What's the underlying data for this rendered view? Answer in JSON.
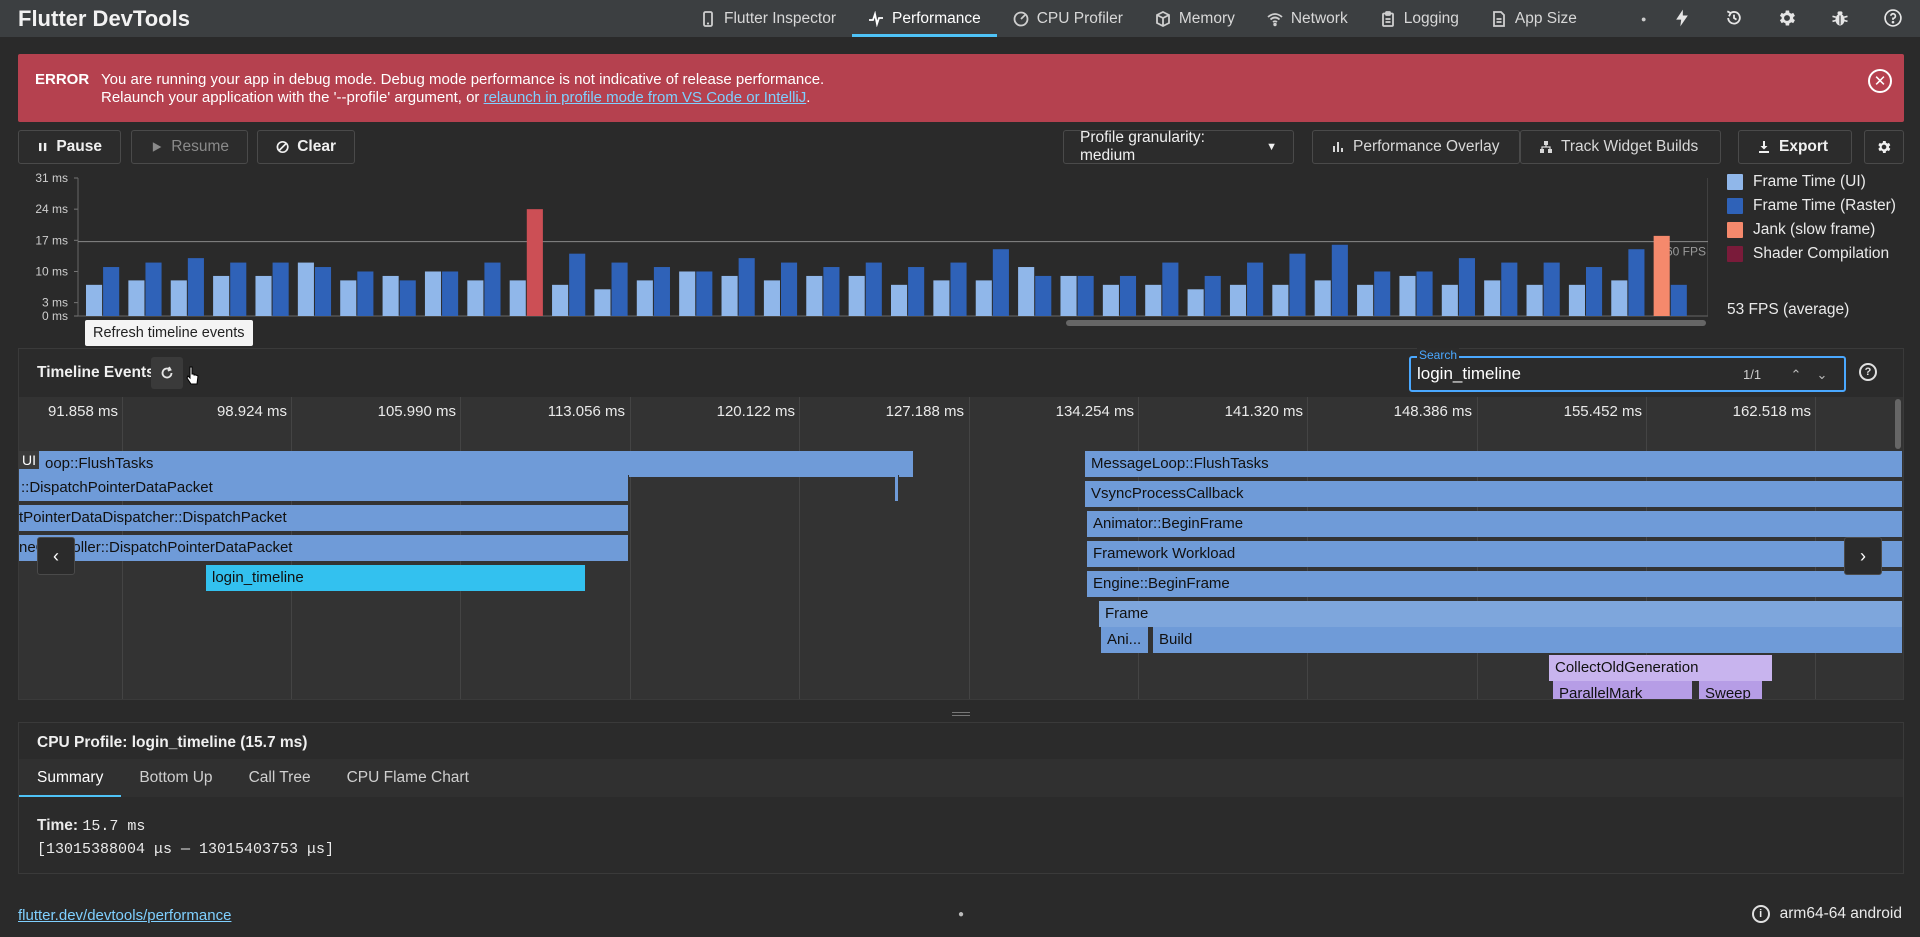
{
  "app": {
    "title": "Flutter DevTools"
  },
  "tabs": [
    {
      "label": "Flutter Inspector",
      "icon": "phone-icon"
    },
    {
      "label": "Performance",
      "icon": "pulse-icon",
      "active": true
    },
    {
      "label": "CPU Profiler",
      "icon": "gauge-icon"
    },
    {
      "label": "Memory",
      "icon": "box-icon"
    },
    {
      "label": "Network",
      "icon": "wifi-icon"
    },
    {
      "label": "Logging",
      "icon": "clipboard-icon"
    },
    {
      "label": "App Size",
      "icon": "file-icon"
    }
  ],
  "error": {
    "title": "ERROR",
    "line1": "You are running your app in debug mode. Debug mode performance is not indicative of release performance.",
    "line2_prefix": "Relaunch your application with the '--profile' argument, or ",
    "line2_link": "relaunch in profile mode from VS Code or IntelliJ",
    "line2_suffix": "."
  },
  "controls": {
    "pause": "Pause",
    "resume": "Resume",
    "clear": "Clear",
    "granularity": "Profile granularity: medium",
    "overlay": "Performance Overlay",
    "track_builds": "Track Widget Builds",
    "export": "Export"
  },
  "chart_data": {
    "type": "bar",
    "ylim": [
      0,
      31
    ],
    "y_ticks": [
      "31 ms",
      "24 ms",
      "17 ms",
      "10 ms",
      "3 ms",
      "0 ms"
    ],
    "target_label": "60 FPS",
    "series": [
      {
        "name": "Frame Time (UI)",
        "color": "#90b7ea"
      },
      {
        "name": "Frame Time (Raster)",
        "color": "#2f62b8"
      },
      {
        "name": "Jank (slow frame)",
        "color": "#f5896c"
      },
      {
        "name": "Shader Compilation",
        "color": "#7a1b3a"
      }
    ],
    "frames": [
      [
        7,
        11
      ],
      [
        8,
        12
      ],
      [
        8,
        13
      ],
      [
        9,
        12
      ],
      [
        9,
        12
      ],
      [
        12,
        11
      ],
      [
        8,
        10
      ],
      [
        9,
        8
      ],
      [
        10,
        10
      ],
      [
        8,
        12
      ],
      [
        8,
        24
      ],
      [
        7,
        14
      ],
      [
        6,
        12
      ],
      [
        8,
        11
      ],
      [
        10,
        10
      ],
      [
        9,
        13
      ],
      [
        8,
        12
      ],
      [
        9,
        11
      ],
      [
        9,
        12
      ],
      [
        7,
        11
      ],
      [
        8,
        12
      ],
      [
        8,
        15
      ],
      [
        11,
        9
      ],
      [
        9,
        9
      ],
      [
        7,
        9
      ],
      [
        7,
        12
      ],
      [
        6,
        9
      ],
      [
        7,
        12
      ],
      [
        7,
        14
      ],
      [
        8,
        16
      ],
      [
        7,
        10
      ],
      [
        9,
        10
      ],
      [
        7,
        13
      ],
      [
        8,
        12
      ],
      [
        7,
        12
      ],
      [
        7,
        11
      ],
      [
        8,
        15
      ],
      [
        18,
        7
      ]
    ],
    "jank_indices": [
      10
    ],
    "slow_raster_indices": [
      37
    ]
  },
  "fps": {
    "average": "53 FPS (average)"
  },
  "tooltip": "Refresh timeline events",
  "timeline": {
    "title": "Timeline Events",
    "search_label": "Search",
    "search_value": "login_timeline",
    "search_count": "1/1",
    "thread_label": "UI",
    "ticks": [
      "91.858 ms",
      "98.924 ms",
      "105.990 ms",
      "113.056 ms",
      "120.122 ms",
      "127.188 ms",
      "134.254 ms",
      "141.320 ms",
      "148.386 ms",
      "155.452 ms",
      "162.518 ms"
    ],
    "events": [
      {
        "label": "oop::FlushTasks"
      },
      {
        "label": "::DispatchPointerDataPacket"
      },
      {
        "label": "tPointerDataDispatcher::DispatchPacket"
      },
      {
        "label": "neController::DispatchPointerDataPacket"
      },
      {
        "label": "login_timeline"
      },
      {
        "label": "MessageLoop::FlushTasks"
      },
      {
        "label": "VsyncProcessCallback"
      },
      {
        "label": "Animator::BeginFrame"
      },
      {
        "label": "Framework Workload"
      },
      {
        "label": "Engine::BeginFrame"
      },
      {
        "label": "Frame"
      },
      {
        "label": "Ani..."
      },
      {
        "label": "Build"
      },
      {
        "label": "CollectOldGeneration"
      },
      {
        "label": "ParallelMark"
      },
      {
        "label": "Sweep"
      }
    ]
  },
  "cpu": {
    "title": "CPU Profile: login_timeline (15.7 ms)",
    "tabs": [
      "Summary",
      "Bottom Up",
      "Call Tree",
      "CPU Flame Chart"
    ],
    "time_label": "Time:",
    "time_value": "15.7 ms",
    "range": "[13015388004 μs —  13015403753 μs]"
  },
  "status": {
    "link": "flutter.dev/devtools/performance",
    "device": "arm64-64 android"
  }
}
